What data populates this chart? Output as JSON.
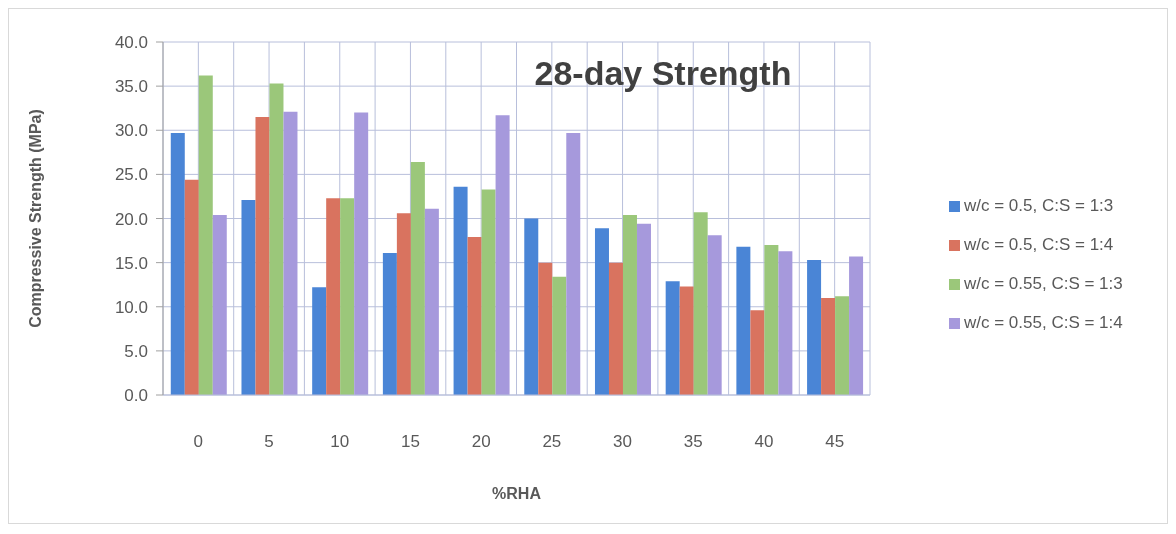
{
  "chart_data": {
    "type": "bar",
    "title": "28-day Strength",
    "xlabel": "%RHA",
    "ylabel": "Compressive Strength (MPa)",
    "categories": [
      "0",
      "5",
      "10",
      "15",
      "20",
      "25",
      "30",
      "35",
      "40",
      "45"
    ],
    "series": [
      {
        "name": "w/c = 0.5, C:S = 1:3",
        "color": "#4a85d6",
        "values": [
          29.7,
          22.1,
          12.2,
          16.1,
          23.6,
          20.0,
          18.9,
          12.9,
          16.8,
          15.3
        ]
      },
      {
        "name": "w/c = 0.5, C:S = 1:4",
        "color": "#d9735f",
        "values": [
          24.4,
          31.5,
          22.3,
          20.6,
          17.9,
          15.0,
          15.0,
          12.3,
          9.6,
          11.0
        ]
      },
      {
        "name": "w/c = 0.55, C:S = 1:3",
        "color": "#9bc77a",
        "values": [
          36.2,
          35.3,
          22.3,
          26.4,
          23.3,
          13.4,
          20.4,
          20.7,
          17.0,
          11.2
        ]
      },
      {
        "name": "w/c = 0.55, C:S = 1:4",
        "color": "#a699dc",
        "values": [
          20.4,
          32.1,
          32.0,
          21.1,
          31.7,
          29.7,
          19.4,
          18.1,
          16.3,
          15.7
        ]
      }
    ],
    "ylim": [
      0,
      40
    ],
    "yticks": [
      {
        "value": 0,
        "label": "0.0"
      },
      {
        "value": 5,
        "label": "5.0"
      },
      {
        "value": 10,
        "label": "10.0"
      },
      {
        "value": 15,
        "label": "15.0"
      },
      {
        "value": 20,
        "label": "20.0"
      },
      {
        "value": 25,
        "label": "25.0"
      },
      {
        "value": 30,
        "label": "30.0"
      },
      {
        "value": 35,
        "label": "35.0"
      },
      {
        "value": 40,
        "label": "40.0"
      }
    ],
    "grid": true,
    "legend": "right"
  }
}
